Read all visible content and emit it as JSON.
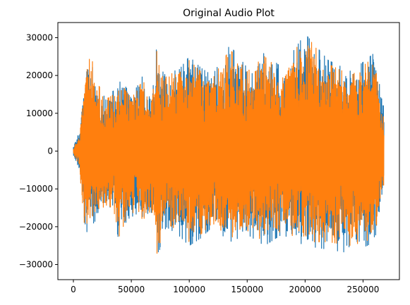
{
  "chart_data": {
    "type": "line",
    "title": "Original Audio Plot",
    "xlabel": "",
    "ylabel": "",
    "xlim": [
      -13400,
      281400
    ],
    "ylim": [
      -34000,
      34000
    ],
    "x_ticks": [
      0,
      50000,
      100000,
      150000,
      200000,
      250000
    ],
    "y_ticks": [
      -30000,
      -20000,
      -10000,
      0,
      10000,
      20000,
      30000
    ],
    "x_tick_labels": [
      "0",
      "50000",
      "100000",
      "150000",
      "200000",
      "250000"
    ],
    "y_tick_labels": [
      "−30000",
      "−20000",
      "−10000",
      "0",
      "10000",
      "20000",
      "30000"
    ],
    "grid": false,
    "legend": "none",
    "sample_count": 268000,
    "series": [
      {
        "color": "#1f77b4",
        "envelope_x": [
          0,
          5000,
          10000,
          15000,
          20000,
          25000,
          30000,
          35000,
          40000,
          45000,
          50000,
          55000,
          60000,
          65000,
          70000,
          72000,
          75000,
          80000,
          90000,
          100000,
          110000,
          120000,
          135000,
          150000,
          165000,
          180000,
          200000,
          220000,
          240000,
          260000,
          267000
        ],
        "envelope_max": [
          1000,
          5000,
          20000,
          27000,
          19000,
          17000,
          15000,
          16000,
          20000,
          17000,
          15000,
          17000,
          20000,
          15000,
          18000,
          29000,
          20000,
          22000,
          21000,
          25000,
          22000,
          20000,
          28000,
          22000,
          26000,
          22000,
          31000,
          24000,
          21000,
          26000,
          12000
        ],
        "envelope_min": [
          -1000,
          -5000,
          -22000,
          -20000,
          -18000,
          -16000,
          -15000,
          -17000,
          -25000,
          -19000,
          -17000,
          -18000,
          -19000,
          -18000,
          -20000,
          -31000,
          -25000,
          -20000,
          -22000,
          -25000,
          -23000,
          -20000,
          -24000,
          -22000,
          -25000,
          -22000,
          -25000,
          -26000,
          -27000,
          -24000,
          -10000
        ]
      },
      {
        "color": "#ff7f0e",
        "envelope_x": [
          0,
          5000,
          10000,
          15000,
          20000,
          25000,
          30000,
          35000,
          40000,
          45000,
          50000,
          55000,
          60000,
          65000,
          70000,
          72000,
          75000,
          80000,
          90000,
          100000,
          110000,
          120000,
          135000,
          150000,
          165000,
          180000,
          200000,
          220000,
          240000,
          260000,
          267000
        ],
        "envelope_max": [
          800,
          4000,
          19000,
          26000,
          18000,
          16000,
          14000,
          15000,
          19000,
          16000,
          14000,
          16000,
          19000,
          14000,
          17000,
          29000,
          19000,
          21000,
          20000,
          24000,
          21000,
          19000,
          27000,
          21000,
          25000,
          21000,
          31000,
          23000,
          20000,
          25000,
          11000
        ],
        "envelope_min": [
          -800,
          -4000,
          -21000,
          -19000,
          -17000,
          -15000,
          -14000,
          -16000,
          -23000,
          -18000,
          -16000,
          -17000,
          -18000,
          -17000,
          -19000,
          -29000,
          -24000,
          -19000,
          -21000,
          -24000,
          -22000,
          -19000,
          -23000,
          -21000,
          -24000,
          -21000,
          -24000,
          -24000,
          -25000,
          -23000,
          -9000
        ]
      }
    ]
  }
}
